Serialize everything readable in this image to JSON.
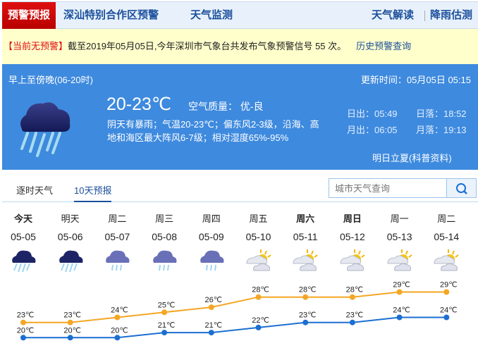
{
  "nav": {
    "active": "预警预报",
    "items": [
      "深汕特别合作区预警",
      "天气监测"
    ],
    "right": [
      "天气解读",
      "降雨估测"
    ]
  },
  "alert": {
    "status": "【当前无预警】",
    "text": "截至2019年05月05日,今年深圳市气象台共发布气象预警信号 55 次。",
    "link": "历史预警查询"
  },
  "current": {
    "period": "早上至傍晚(06-20时)",
    "update": "更新时间：05月05日 05:15",
    "temp": "20-23℃",
    "aqi": "空气质量： 优-良",
    "desc1": "阴天有暴雨；气温20-23℃；偏东风2-3级，沿海、高",
    "desc2": "地和海区最大阵风6-7级；相对湿度65%-95%",
    "sunrise": "日出：05:49",
    "sunset": "日落：18:52",
    "moonrise": "月出：06:05",
    "moonset": "月落：19:13",
    "tip": "明日立夏(科普资料)",
    "icon": "heavy-rain-icon"
  },
  "tabs": [
    "逐时天气",
    "10天预报"
  ],
  "search": {
    "placeholder": "城市天气查询"
  },
  "days": [
    {
      "w": "今天",
      "d": "05-05",
      "icon": "heavy-rain",
      "hi": 23,
      "lo": 20,
      "bold": true
    },
    {
      "w": "明天",
      "d": "05-06",
      "icon": "heavy-rain",
      "hi": 23,
      "lo": 20
    },
    {
      "w": "周二",
      "d": "05-07",
      "icon": "rain",
      "hi": 24,
      "lo": 20
    },
    {
      "w": "周三",
      "d": "05-08",
      "icon": "rain",
      "hi": 25,
      "lo": 21
    },
    {
      "w": "周四",
      "d": "05-09",
      "icon": "rain",
      "hi": 26,
      "lo": 21
    },
    {
      "w": "周五",
      "d": "05-10",
      "icon": "partly-cloudy",
      "hi": 28,
      "lo": 22
    },
    {
      "w": "周六",
      "d": "05-11",
      "icon": "partly-cloudy",
      "hi": 28,
      "lo": 23,
      "bold": true
    },
    {
      "w": "周日",
      "d": "05-12",
      "icon": "partly-cloudy",
      "hi": 28,
      "lo": 23,
      "bold": true
    },
    {
      "w": "周一",
      "d": "05-13",
      "icon": "partly-cloudy",
      "hi": 29,
      "lo": 24
    },
    {
      "w": "周二",
      "d": "05-14",
      "icon": "partly-cloudy",
      "hi": 29,
      "lo": 24
    }
  ],
  "colors": {
    "high": "#f5a623",
    "low": "#1c6fd1",
    "accent": "#3e8ade"
  }
}
